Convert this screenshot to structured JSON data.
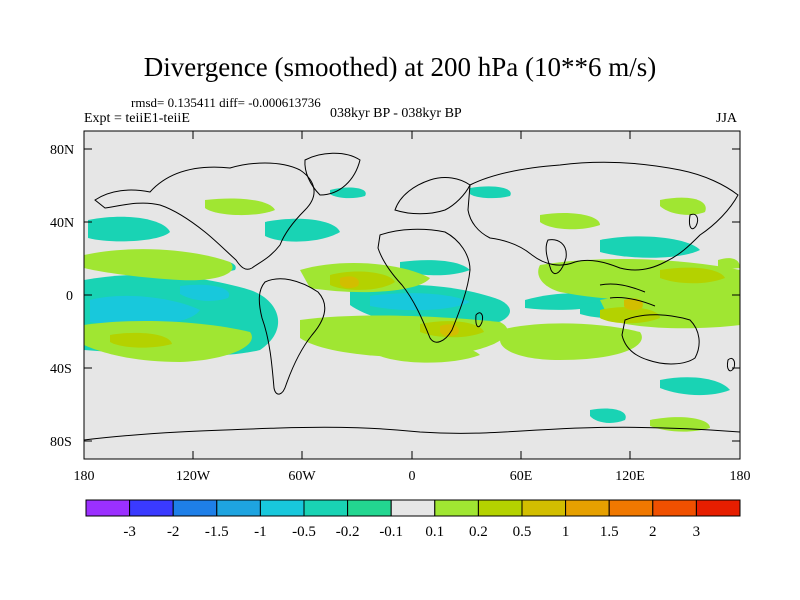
{
  "figure": {
    "title": "Divergence (smoothed) at 200 hPa (10**6 m/s)",
    "stats": "rmsd= 0.135411 diff= -0.000613736",
    "experiment": "Expt = teiiE1-teiiE",
    "period": "038kyr BP - 038kyr BP",
    "season": "JJA"
  },
  "axes": {
    "lat_ticks": [
      "80N",
      "40N",
      "0",
      "40S",
      "80S"
    ],
    "lon_ticks": [
      "180",
      "120W",
      "60W",
      "0",
      "60E",
      "120E",
      "180"
    ]
  },
  "colorbar": {
    "colors": [
      "#9b30ff",
      "#3a3aff",
      "#1e7fe8",
      "#1ea4e0",
      "#18c8dc",
      "#19d3b4",
      "#23d690",
      "#e6e6e6",
      "#a0e632",
      "#b4d200",
      "#d2be00",
      "#e6a000",
      "#f07800",
      "#f05000",
      "#e61e00"
    ],
    "labels": [
      "-3",
      "-2",
      "-1.5",
      "-1",
      "-0.5",
      "-0.2",
      "-0.1",
      "0.1",
      "0.2",
      "0.5",
      "1",
      "1.5",
      "2",
      "3"
    ]
  }
}
